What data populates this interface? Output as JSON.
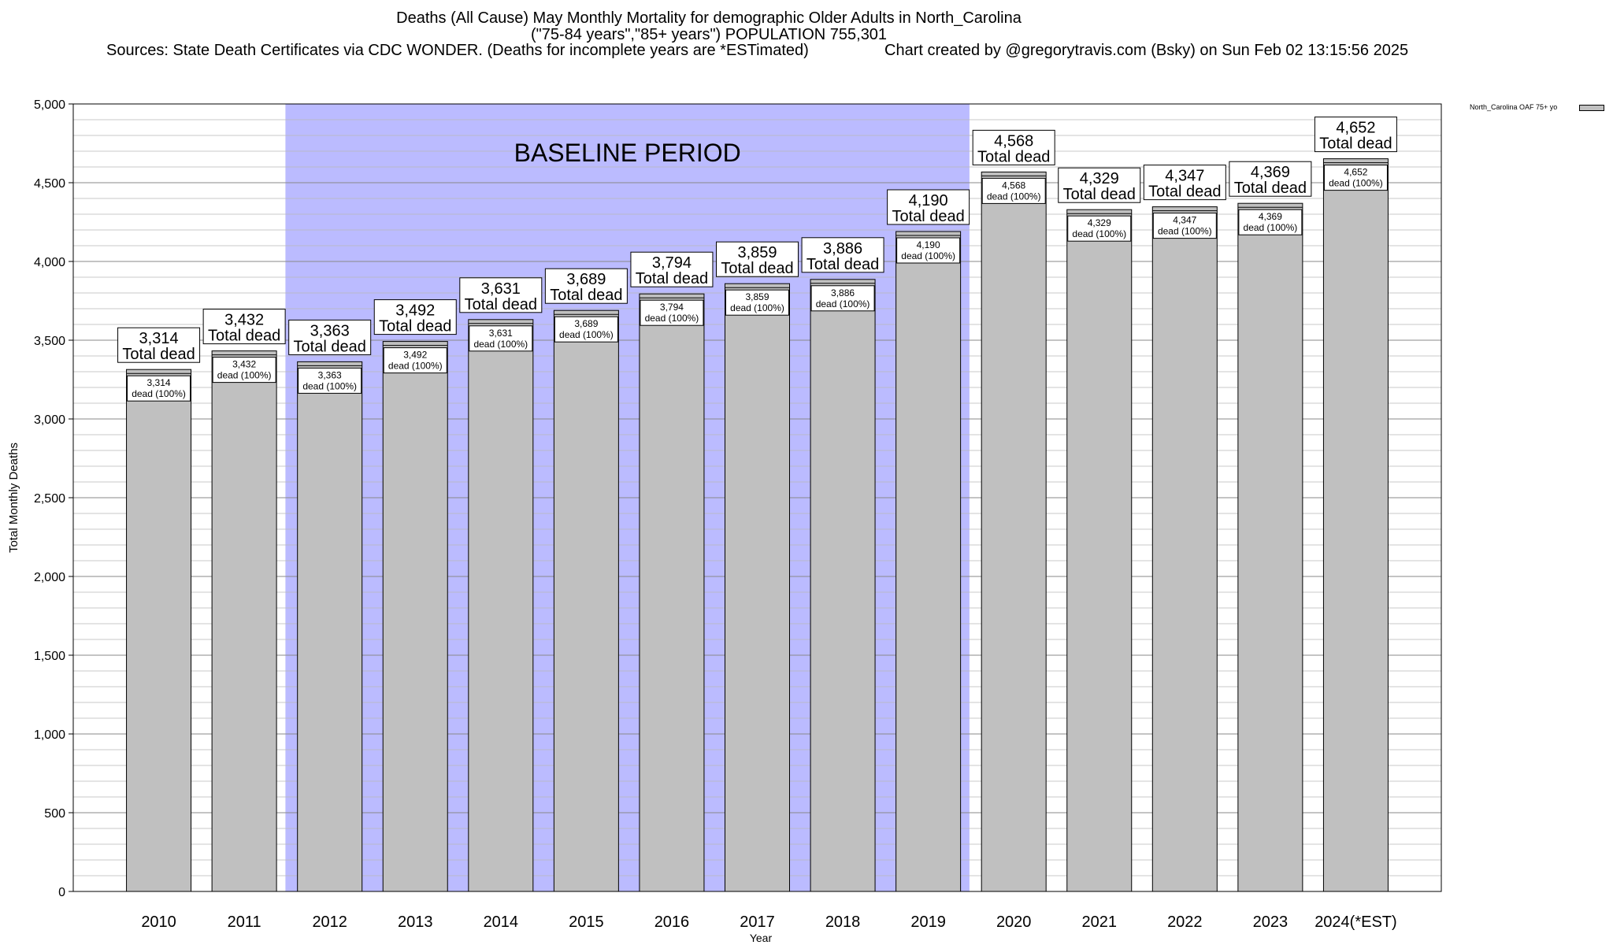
{
  "title": {
    "line1": "Deaths (All Cause) May Monthly Mortality for demographic Older Adults in North_Carolina",
    "line2": "(\"75-84 years\",\"85+ years\") POPULATION 755,301",
    "source": "Sources: State Death Certificates via CDC WONDER. (Deaths for incomplete years are *ESTimated)",
    "credit": "Chart created by @gregorytravis.com (Bsky) on Sun Feb 02 13:15:56 2025"
  },
  "chart_data": {
    "type": "bar",
    "xlabel": "Year",
    "ylabel": "Total Monthly Deaths",
    "ylim": [
      0,
      5000
    ],
    "yticks": [
      0,
      500,
      1000,
      1500,
      2000,
      2500,
      3000,
      3500,
      4000,
      4500,
      5000
    ],
    "ytick_labels": [
      "0",
      "500",
      "1,000",
      "1,500",
      "2,000",
      "2,500",
      "3,000",
      "3,500",
      "4,000",
      "4,500",
      "5,000"
    ],
    "categories": [
      "2010",
      "2011",
      "2012",
      "2013",
      "2014",
      "2015",
      "2016",
      "2017",
      "2018",
      "2019",
      "2020",
      "2021",
      "2022",
      "2023",
      "2024(*EST)"
    ],
    "value_labels": [
      "3,314",
      "3,432",
      "3,363",
      "3,492",
      "3,631",
      "3,689",
      "3,794",
      "3,859",
      "3,886",
      "4,190",
      "4,568",
      "4,329",
      "4,347",
      "4,369",
      "4,652"
    ],
    "series": [
      {
        "name": "North_Carolina OAF 75+ yo",
        "values": [
          3314,
          3432,
          3363,
          3492,
          3631,
          3689,
          3794,
          3859,
          3886,
          4190,
          4568,
          4329,
          4347,
          4369,
          4652
        ]
      }
    ],
    "total_label": "Total dead",
    "inner_label": "dead (100%)",
    "baseline": {
      "label": "BASELINE PERIOD",
      "from": "2012",
      "to": "2019",
      "color": "#bbbbff"
    },
    "bar_color": "#c0c0c0",
    "grid": true,
    "legend_position": "top-right"
  }
}
